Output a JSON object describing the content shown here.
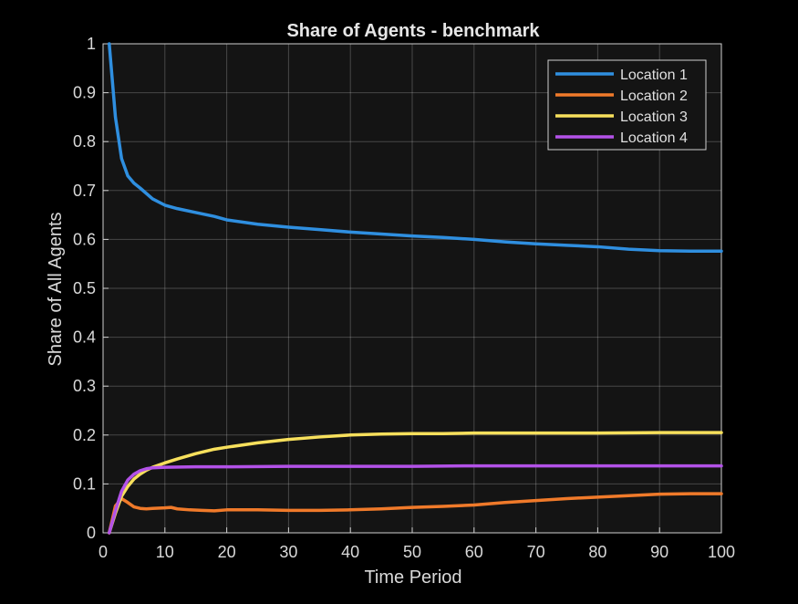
{
  "chart_data": {
    "type": "line",
    "title": "Share of Agents - benchmark",
    "xlabel": "Time Period",
    "ylabel": "Share of All Agents",
    "xlim": [
      0,
      100
    ],
    "ylim": [
      0,
      1
    ],
    "xticks": [
      "0",
      "10",
      "20",
      "30",
      "40",
      "50",
      "60",
      "70",
      "80",
      "90",
      "100"
    ],
    "yticks": [
      "0",
      "0.1",
      "0.2",
      "0.3",
      "0.4",
      "0.5",
      "0.6",
      "0.7",
      "0.8",
      "0.9",
      "1"
    ],
    "grid": true,
    "legend_position": "top-right",
    "background": "#141414",
    "series": [
      {
        "name": "Location 1",
        "color": "#2F8FE0",
        "x": [
          1,
          2,
          3,
          4,
          5,
          6,
          8,
          10,
          12,
          15,
          18,
          20,
          25,
          30,
          35,
          40,
          45,
          50,
          55,
          60,
          65,
          70,
          75,
          80,
          85,
          90,
          95,
          100
        ],
        "y": [
          1.0,
          0.85,
          0.765,
          0.73,
          0.715,
          0.705,
          0.683,
          0.67,
          0.663,
          0.655,
          0.647,
          0.64,
          0.631,
          0.625,
          0.62,
          0.615,
          0.611,
          0.607,
          0.604,
          0.6,
          0.595,
          0.591,
          0.588,
          0.585,
          0.58,
          0.577,
          0.576,
          0.576
        ]
      },
      {
        "name": "Location 2",
        "color": "#F07A2A",
        "x": [
          1,
          2,
          3,
          4,
          5,
          6,
          7,
          8,
          10,
          11,
          12,
          14,
          16,
          18,
          20,
          25,
          30,
          35,
          40,
          45,
          50,
          55,
          60,
          65,
          70,
          75,
          80,
          85,
          90,
          95,
          100
        ],
        "y": [
          0.0,
          0.055,
          0.07,
          0.062,
          0.053,
          0.05,
          0.049,
          0.05,
          0.051,
          0.052,
          0.049,
          0.047,
          0.046,
          0.045,
          0.047,
          0.047,
          0.046,
          0.046,
          0.047,
          0.049,
          0.052,
          0.054,
          0.057,
          0.062,
          0.066,
          0.07,
          0.073,
          0.076,
          0.079,
          0.08,
          0.08
        ]
      },
      {
        "name": "Location 3",
        "color": "#F7E05C",
        "x": [
          1,
          2,
          3,
          4,
          5,
          6,
          7,
          8,
          10,
          12,
          15,
          18,
          20,
          25,
          30,
          35,
          40,
          45,
          50,
          55,
          60,
          70,
          80,
          90,
          100
        ],
        "y": [
          0.0,
          0.04,
          0.075,
          0.095,
          0.11,
          0.12,
          0.128,
          0.134,
          0.143,
          0.151,
          0.162,
          0.171,
          0.175,
          0.184,
          0.191,
          0.196,
          0.2,
          0.202,
          0.203,
          0.203,
          0.204,
          0.204,
          0.204,
          0.205,
          0.205
        ]
      },
      {
        "name": "Location 4",
        "color": "#B352E8",
        "x": [
          1,
          2,
          3,
          4,
          5,
          6,
          7,
          8,
          10,
          15,
          20,
          30,
          40,
          50,
          60,
          70,
          80,
          90,
          100
        ],
        "y": [
          0.0,
          0.045,
          0.085,
          0.108,
          0.12,
          0.127,
          0.131,
          0.133,
          0.134,
          0.135,
          0.135,
          0.136,
          0.136,
          0.136,
          0.137,
          0.137,
          0.137,
          0.137,
          0.137
        ]
      }
    ]
  }
}
